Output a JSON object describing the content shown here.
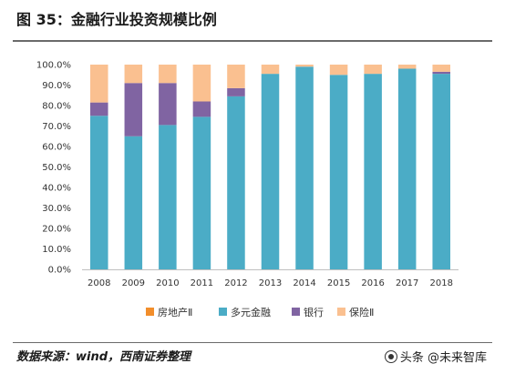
{
  "header": {
    "title": "图 35：金融行业投资规模比例"
  },
  "footer": {
    "source": "数据来源：wind，西南证券整理",
    "watermark": "头条 @未来智库"
  },
  "chart_data": {
    "type": "bar",
    "stacked": true,
    "categories": [
      "2008",
      "2009",
      "2010",
      "2011",
      "2012",
      "2013",
      "2014",
      "2015",
      "2016",
      "2017",
      "2018"
    ],
    "ylim": [
      0,
      100
    ],
    "yticks": [
      "0.0%",
      "10.0%",
      "20.0%",
      "30.0%",
      "40.0%",
      "50.0%",
      "60.0%",
      "70.0%",
      "80.0%",
      "90.0%",
      "100.0%"
    ],
    "legend_position": "bottom",
    "grid": false,
    "series": [
      {
        "name": "房地产Ⅱ",
        "color": "#f28e2b",
        "values": [
          0,
          0,
          0,
          0,
          0,
          0,
          0,
          0,
          0,
          0,
          0
        ]
      },
      {
        "name": "多元金融",
        "color": "#4bacc6",
        "values": [
          75,
          65,
          70.5,
          74.5,
          84.5,
          95.5,
          99,
          95,
          95.5,
          98,
          95.5
        ]
      },
      {
        "name": "银行",
        "color": "#8064a2",
        "values": [
          6.5,
          26,
          20.5,
          7.5,
          4,
          0,
          0,
          0,
          0,
          0,
          1
        ]
      },
      {
        "name": "保险Ⅱ",
        "color": "#fac090",
        "values": [
          18.5,
          9,
          9,
          18,
          11.5,
          4.5,
          1,
          5,
          4.5,
          2,
          3.5
        ]
      }
    ]
  }
}
